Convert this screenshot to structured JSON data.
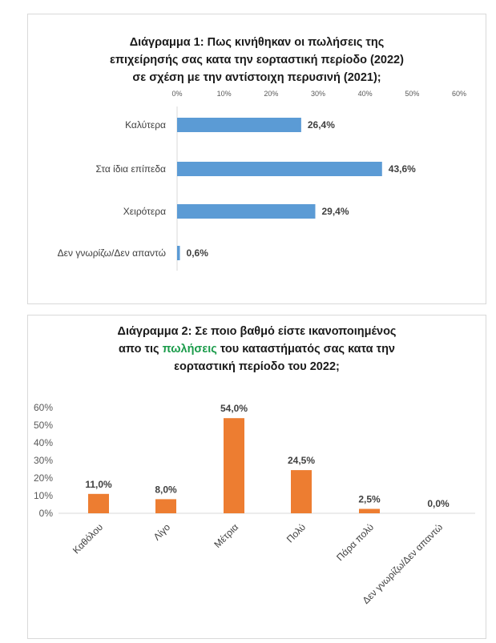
{
  "chart_data": [
    {
      "type": "bar",
      "orientation": "horizontal",
      "title_lines": [
        "Διάγραμμα 1: Πως κινήθηκαν οι πωλήσεις της",
        "επιχείρησής σας κατα την εορταστική περίοδο (2022)",
        "σε σχέση με την αντίστοιχη περυσινή (2021);"
      ],
      "categories": [
        "Καλύτερα",
        "Στα ίδια επίπεδα",
        "Χειρότερα",
        "Δεν γνωρίζω/Δεν απαντώ"
      ],
      "values": [
        26.4,
        43.6,
        29.4,
        0.6
      ],
      "value_labels": [
        "26,4%",
        "43,6%",
        "29,4%",
        "0,6%"
      ],
      "xlim": [
        0,
        60
      ],
      "ticks": [
        "0%",
        "10%",
        "20%",
        "30%",
        "40%",
        "50%",
        "60%"
      ],
      "axis_position": "top",
      "grid": false,
      "bar_color": "#5b9bd5"
    },
    {
      "type": "bar",
      "orientation": "vertical",
      "title_lines": [
        "Διάγραμμα 2: Σε ποιο βαθμό είστε ικανοποιημένος",
        "απο τις ",
        "πωλήσεις",
        " του καταστήματός σας κατα την",
        "εορταστική περίοδο του 2022;"
      ],
      "highlight_color": "#1a9b4a",
      "categories": [
        "Καθόλου",
        "Λίγο",
        "Μέτρια",
        "Πολύ",
        "Πάρα πολύ",
        "Δεν γνωρίζω/Δεν απαντώ"
      ],
      "values": [
        11.0,
        8.0,
        54.0,
        24.5,
        2.5,
        0.0
      ],
      "value_labels": [
        "11,0%",
        "8,0%",
        "54,0%",
        "24,5%",
        "2,5%",
        "0,0%"
      ],
      "ylim": [
        0,
        60
      ],
      "ticks": [
        "0%",
        "10%",
        "20%",
        "30%",
        "40%",
        "50%",
        "60%"
      ],
      "grid": false,
      "bar_color": "#ed7d31"
    }
  ]
}
